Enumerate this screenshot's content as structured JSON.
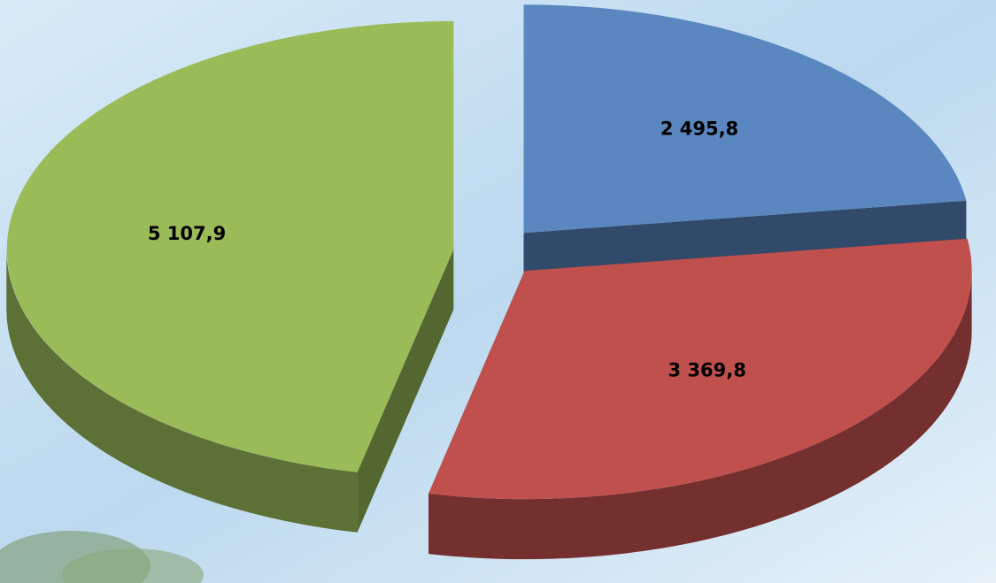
{
  "chart_data": {
    "type": "pie",
    "values": [
      2495.8,
      3369.8,
      5107.9
    ],
    "value_labels": [
      "2 495,8",
      "3 369,8",
      "5 107,9"
    ],
    "colors": [
      "#5b87c0",
      "#c0504d",
      "#9bbb59"
    ]
  }
}
